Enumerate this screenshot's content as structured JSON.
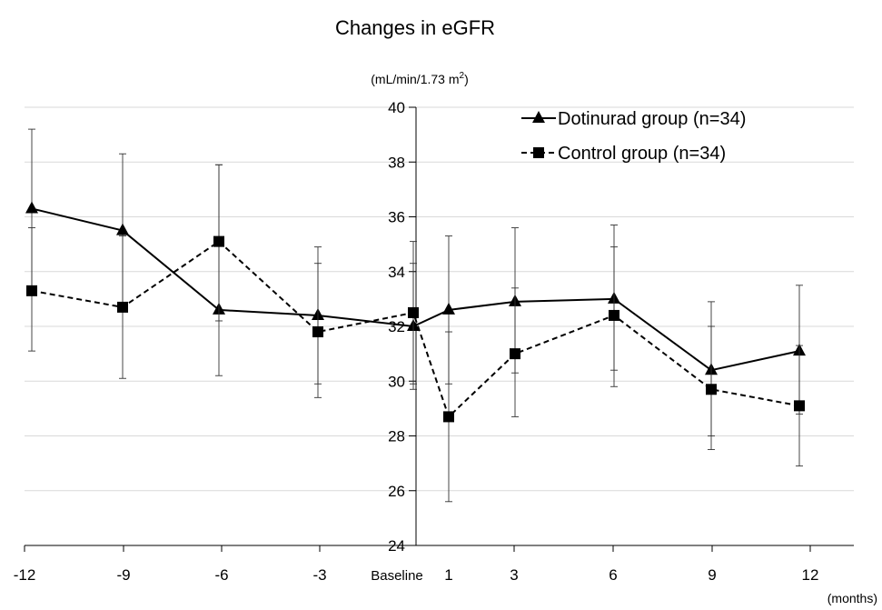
{
  "chart_data": {
    "type": "line",
    "title": "Changes in eGFR",
    "ylabel_unit": "(mL/min/1.73 m",
    "ylabel_unit_sup": "2",
    "ylabel_unit_close": ")",
    "xlabel_unit": "(months)",
    "ylim": [
      24,
      40
    ],
    "yticks": [
      24,
      26,
      28,
      30,
      32,
      34,
      36,
      38,
      40
    ],
    "xticks": [
      {
        "label": "-12",
        "x": -12
      },
      {
        "label": "-9",
        "x": -9
      },
      {
        "label": "-6",
        "x": -6
      },
      {
        "label": "-3",
        "x": -3
      },
      {
        "label": "Baseline",
        "x": 0
      },
      {
        "label": "1",
        "x": 1
      },
      {
        "label": "3",
        "x": 3
      },
      {
        "label": "6",
        "x": 6
      },
      {
        "label": "9",
        "x": 9
      },
      {
        "label": "12",
        "x": 12
      }
    ],
    "grid": true,
    "legend_position": "top-right",
    "series": [
      {
        "name": "Dotinurad group (n=34)",
        "marker": "triangle",
        "line_style": "solid",
        "color": "#000000",
        "points": [
          {
            "x": -12,
            "y": 36.3,
            "lo": 33.4,
            "hi": 39.2
          },
          {
            "x": -9,
            "y": 35.5,
            "lo": 32.7,
            "hi": 38.3
          },
          {
            "x": -6,
            "y": 32.6,
            "lo": 32.2,
            "hi": 37.9
          },
          {
            "x": -3,
            "y": 32.4,
            "lo": 29.9,
            "hi": 34.9
          },
          {
            "x": 0,
            "y": 32.0,
            "lo": 29.7,
            "hi": 34.3
          },
          {
            "x": 1,
            "y": 32.6,
            "lo": 29.9,
            "hi": 35.3
          },
          {
            "x": 3,
            "y": 32.9,
            "lo": 30.3,
            "hi": 35.6
          },
          {
            "x": 6,
            "y": 33.0,
            "lo": 30.4,
            "hi": 35.7
          },
          {
            "x": 9,
            "y": 30.4,
            "lo": 28.0,
            "hi": 32.9
          },
          {
            "x": 12,
            "y": 31.1,
            "lo": 28.8,
            "hi": 33.5
          }
        ]
      },
      {
        "name": "Control group (n=34)",
        "marker": "square",
        "line_style": "dashed",
        "color": "#000000",
        "points": [
          {
            "x": -12,
            "y": 33.3,
            "lo": 31.1,
            "hi": 35.6
          },
          {
            "x": -9,
            "y": 32.7,
            "lo": 30.1,
            "hi": 35.3
          },
          {
            "x": -6,
            "y": 35.1,
            "lo": 30.2,
            "hi": 37.9
          },
          {
            "x": -3,
            "y": 31.8,
            "lo": 29.4,
            "hi": 34.3
          },
          {
            "x": 0,
            "y": 32.5,
            "lo": 29.9,
            "hi": 35.1
          },
          {
            "x": 1,
            "y": 28.7,
            "lo": 25.6,
            "hi": 31.8
          },
          {
            "x": 3,
            "y": 31.0,
            "lo": 28.7,
            "hi": 33.4
          },
          {
            "x": 6,
            "y": 32.4,
            "lo": 29.8,
            "hi": 34.9
          },
          {
            "x": 9,
            "y": 29.7,
            "lo": 27.5,
            "hi": 32.0
          },
          {
            "x": 12,
            "y": 29.1,
            "lo": 26.9,
            "hi": 31.3
          }
        ]
      }
    ]
  }
}
